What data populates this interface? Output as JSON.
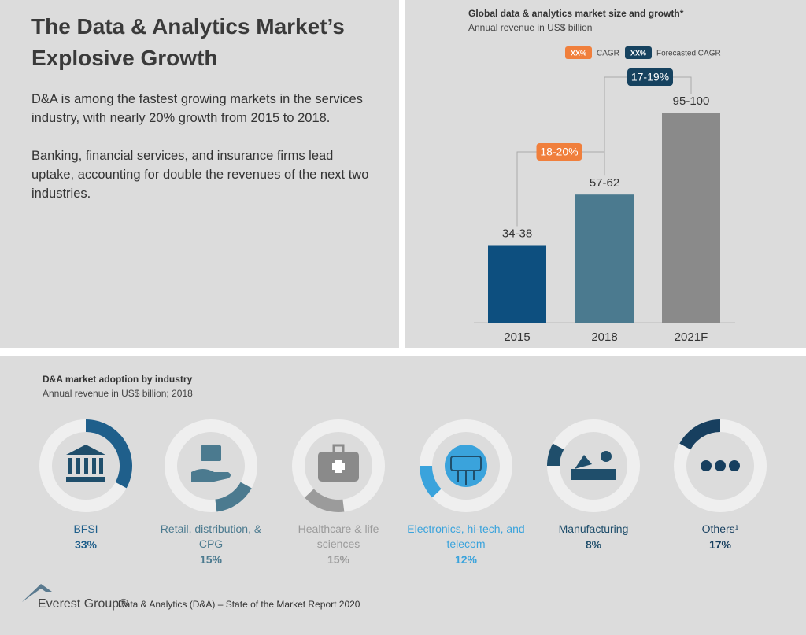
{
  "header": {
    "title": "The Data & Analytics Market’s Explosive Growth",
    "paragraphs": [
      "D&A is among the fastest growing markets in the services industry, with nearly 20% growth from 2015 to 2018.",
      "Banking, financial services, and insurance firms lead uptake, accounting for double the revenues of the next two industries."
    ]
  },
  "chart_data": [
    {
      "type": "bar",
      "title": "Global data & analytics market size and growth*",
      "subtitle": "Annual revenue in US$ billion",
      "categories": [
        "2015",
        "2018",
        "2021F"
      ],
      "values": [
        36,
        59.5,
        97.5
      ],
      "value_labels": [
        "34-38",
        "57-62",
        "95-100"
      ],
      "colors": [
        "#0d4f7f",
        "#4b7a8f",
        "#8a8a8a"
      ],
      "ylim": [
        0,
        110
      ],
      "legend": [
        {
          "label": "XX%",
          "name": "CAGR",
          "color": "#f07f3c"
        },
        {
          "label": "XX%",
          "name": "Forecasted CAGR",
          "color": "#16425f"
        }
      ],
      "annotations": [
        "18-20%",
        "17-19%"
      ]
    },
    {
      "type": "donut",
      "title": "D&A market adoption by industry",
      "subtitle": "Annual revenue in US$ billion; 2018",
      "categories": [
        "BFSI",
        "Retail, distribution, & CPG",
        "Healthcare & life sciences",
        "Electronics, hi-tech, and telecom",
        "Manufacturing",
        "Others¹"
      ],
      "values": [
        33,
        15,
        15,
        12,
        8,
        17
      ],
      "value_labels": [
        "33%",
        "15%",
        "15%",
        "12%",
        "8%",
        "17%"
      ],
      "colors": [
        "#1f5f8b",
        "#4b7a8f",
        "#9b9b9b",
        "#3aa3dc",
        "#1f4e6b",
        "#173f5f"
      ]
    }
  ],
  "footer": {
    "brand": "Everest Group®",
    "report": "Data & Analytics (D&A) – State of the Market Report 2020"
  }
}
